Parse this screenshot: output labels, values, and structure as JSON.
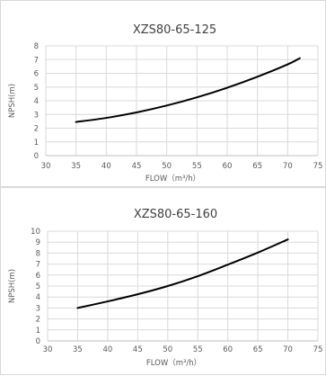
{
  "charts": [
    {
      "chart_data": {
        "type": "line",
        "title": "XZS80-65-125",
        "xlabel": "FLOW（m³/h）",
        "ylabel": "NPSH(m)",
        "xlim": [
          30,
          75
        ],
        "ylim": [
          0,
          8
        ],
        "x_ticks": [
          30,
          35,
          40,
          45,
          50,
          55,
          60,
          65,
          70,
          75
        ],
        "y_ticks": [
          0,
          1,
          2,
          3,
          4,
          5,
          6,
          7,
          8
        ],
        "grid": true,
        "series": [
          {
            "x": [
              35,
              40,
              45,
              50,
              55,
              60,
              65,
              70,
              72
            ],
            "y": [
              2.45,
              2.75,
              3.15,
              3.65,
              4.25,
              4.95,
              5.75,
              6.65,
              7.1
            ]
          }
        ]
      }
    },
    {
      "chart_data": {
        "type": "line",
        "title": "XZS80-65-160",
        "xlabel": "FLOW（m³/h）",
        "ylabel": "NPSH(m)",
        "xlim": [
          30,
          75
        ],
        "ylim": [
          0,
          10
        ],
        "x_ticks": [
          30,
          35,
          40,
          45,
          50,
          55,
          60,
          65,
          70,
          75
        ],
        "y_ticks": [
          0,
          1,
          2,
          3,
          4,
          5,
          6,
          7,
          8,
          9,
          10
        ],
        "grid": true,
        "series": [
          {
            "x": [
              35,
              40,
              45,
              50,
              55,
              60,
              65,
              70
            ],
            "y": [
              3.0,
              3.6,
              4.25,
              5.0,
              5.9,
              6.95,
              8.05,
              9.25
            ]
          }
        ]
      }
    }
  ]
}
